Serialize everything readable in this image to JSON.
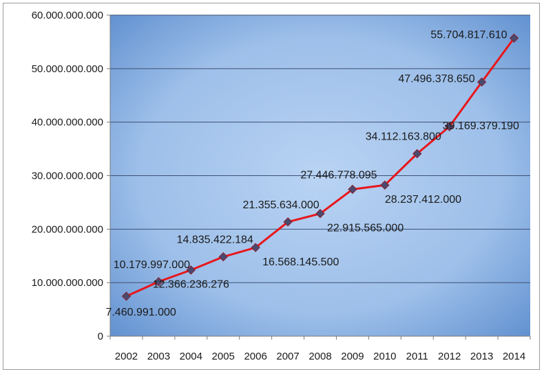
{
  "chart_data": {
    "type": "line",
    "title": "",
    "xlabel": "",
    "ylabel": "",
    "ylim": [
      0,
      60000000000
    ],
    "yticks": [
      0,
      10000000000,
      20000000000,
      30000000000,
      40000000000,
      50000000000,
      60000000000
    ],
    "ytick_labels": [
      "0",
      "10.000.000.000",
      "20.000.000.000",
      "30.000.000.000",
      "40.000.000.000",
      "50.000.000.000",
      "60.000.000.000"
    ],
    "categories": [
      "2002",
      "2003",
      "2004",
      "2005",
      "2006",
      "2007",
      "2008",
      "2009",
      "2010",
      "2011",
      "2012",
      "2013",
      "2014"
    ],
    "series": [
      {
        "values": [
          7460991000,
          10179997000,
          12366236276,
          14835422184,
          16568145500,
          21355634000,
          22915565000,
          27446778095,
          28237412000,
          34112163800,
          39169379190,
          47496378650,
          55704817610
        ],
        "labels": [
          "7.460.991.000",
          "10.179.997.000",
          "12.366.236.276",
          "14.835.422.184",
          "16.568.145.500",
          "21.355.634.000",
          "22.915.565.000",
          "27.446.778.095",
          "28.237.412.000",
          "34.112.163.800",
          "39.169.379.190",
          "47.496.378.650",
          "55.704.817.610"
        ]
      }
    ],
    "grid": true,
    "legend": "none",
    "colors": {
      "line": "#e8161b",
      "marker": "#4a4a6e",
      "plot_bg_light": "#b7d1f2",
      "plot_bg_dark": "#5f8fcf",
      "gridline": "#3c4f73"
    }
  }
}
